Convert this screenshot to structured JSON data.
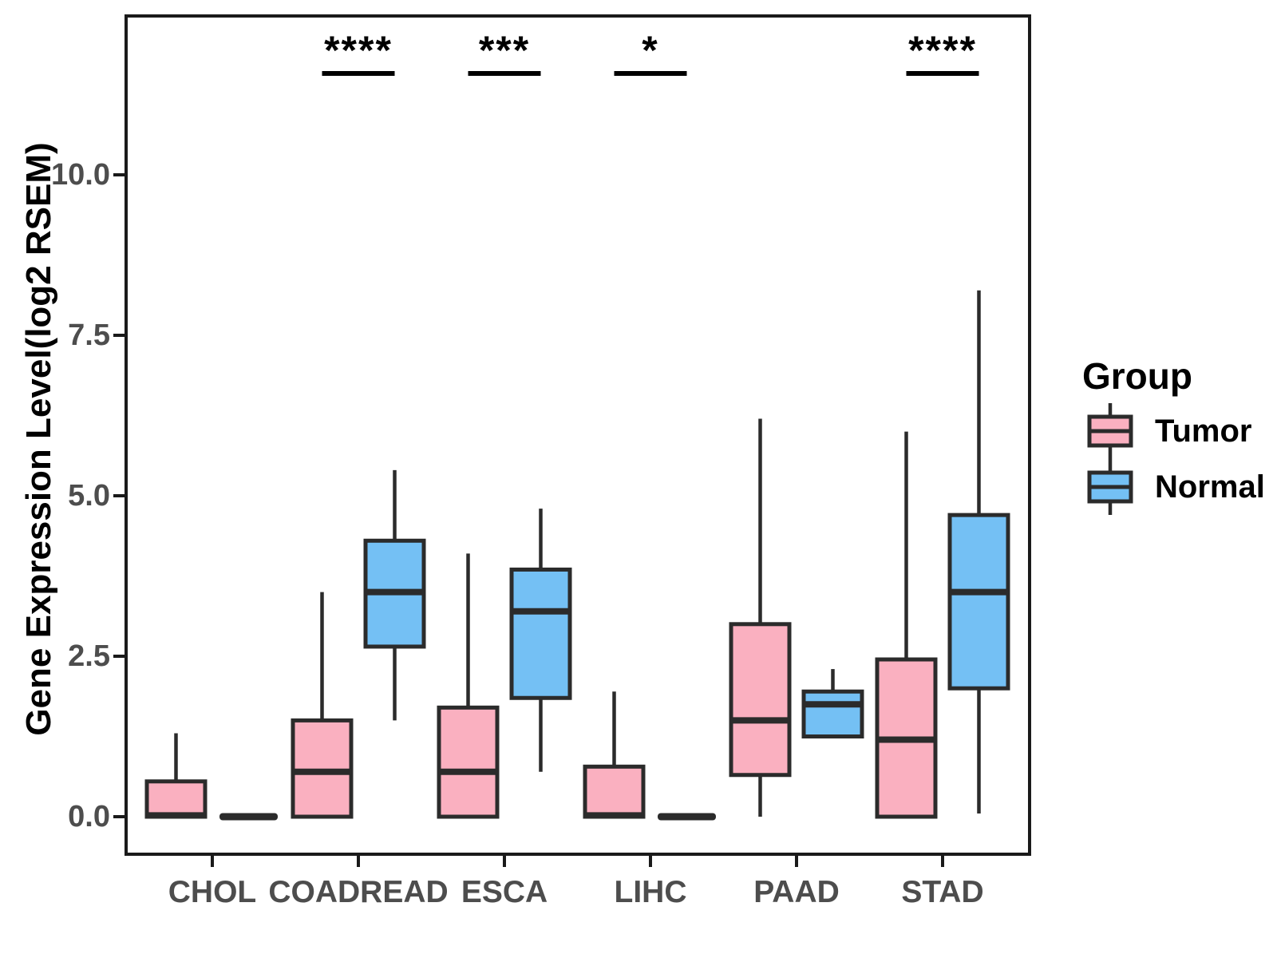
{
  "figure": {
    "kind": "grouped-boxplot-figure"
  },
  "legend": {
    "title": "Group",
    "items": [
      {
        "label": "Tumor",
        "color": "#FAB0C0"
      },
      {
        "label": "Normal",
        "color": "#74C0F4"
      }
    ]
  },
  "colors": {
    "tumor_fill": "#FAB0C0",
    "normal_fill": "#74C0F4",
    "box_outline": "#2B2B2B",
    "axis_line": "#1a1a1a",
    "tick_label": "#4D4D4D",
    "annotation": "#000000",
    "background": "#FFFFFF"
  },
  "chart_data": {
    "type": "boxplot",
    "title": "",
    "xlabel": "",
    "ylabel": "Gene Expression Level(log2 RSEM)",
    "categories": [
      "CHOL",
      "COADREAD",
      "ESCA",
      "LIHC",
      "PAAD",
      "STAD"
    ],
    "yticks": [
      {
        "label": "0.0",
        "value": 0
      },
      {
        "label": "2.5",
        "value": 2.5
      },
      {
        "label": "5.0",
        "value": 5
      },
      {
        "label": "7.5",
        "value": 7.5
      },
      {
        "label": "10.0",
        "value": 10
      }
    ],
    "ylim": [
      -0.6,
      12.5
    ],
    "grid": false,
    "legend_position": "right",
    "series": [
      {
        "name": "Tumor",
        "color": "#FAB0C0",
        "boxes": [
          {
            "min": 0,
            "q1": 0,
            "median": 0.02,
            "q3": 0.55,
            "max": 1.3
          },
          {
            "min": 0,
            "q1": 0,
            "median": 0.7,
            "q3": 1.5,
            "max": 3.5
          },
          {
            "min": 0,
            "q1": 0,
            "median": 0.7,
            "q3": 1.7,
            "max": 4.1
          },
          {
            "min": 0,
            "q1": 0,
            "median": 0.02,
            "q3": 0.78,
            "max": 1.95
          },
          {
            "min": 0,
            "q1": 0.65,
            "median": 1.5,
            "q3": 3.0,
            "max": 6.2
          },
          {
            "min": 0,
            "q1": 0,
            "median": 1.2,
            "q3": 2.45,
            "max": 6.0
          }
        ]
      },
      {
        "name": "Normal",
        "color": "#74C0F4",
        "boxes": [
          {
            "min": 0,
            "q1": 0,
            "median": 0,
            "q3": 0,
            "max": 0
          },
          {
            "min": 1.5,
            "q1": 2.65,
            "median": 3.5,
            "q3": 4.3,
            "max": 5.4
          },
          {
            "min": 0.7,
            "q1": 1.85,
            "median": 3.2,
            "q3": 3.85,
            "max": 4.8
          },
          {
            "min": 0,
            "q1": 0,
            "median": 0,
            "q3": 0,
            "max": 0
          },
          {
            "min": 1.25,
            "q1": 1.25,
            "median": 1.75,
            "q3": 1.95,
            "max": 2.3
          },
          {
            "min": 0.05,
            "q1": 2.0,
            "median": 3.5,
            "q3": 4.7,
            "max": 8.2
          }
        ]
      }
    ],
    "significance": [
      {
        "category": "COADREAD",
        "category_index": 1,
        "stars": "****"
      },
      {
        "category": "ESCA",
        "category_index": 2,
        "stars": "***"
      },
      {
        "category": "LIHC",
        "category_index": 3,
        "stars": "*"
      },
      {
        "category": "STAD",
        "category_index": 5,
        "stars": "****"
      }
    ]
  }
}
